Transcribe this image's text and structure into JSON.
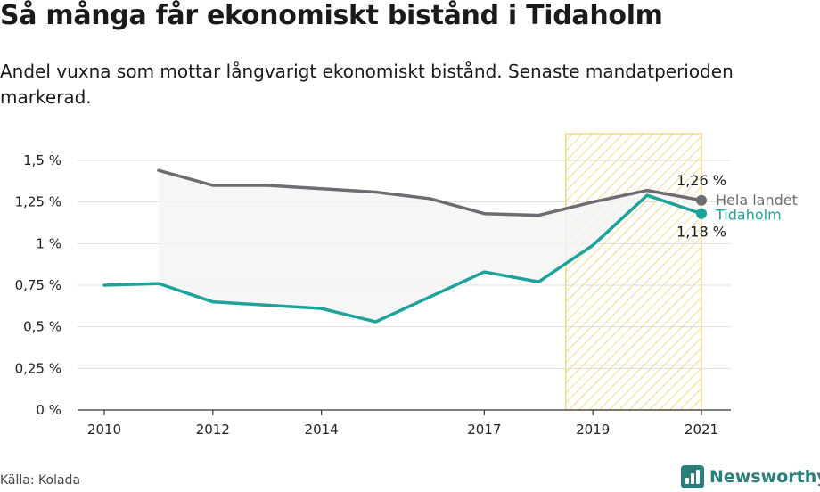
{
  "header": {
    "title": "Så många får ekonomiskt bistånd i Tidaholm",
    "subtitle": "Andel vuxna som mottar långvarigt ekonomiskt bistånd. Senaste mandatperioden markerad."
  },
  "footer": {
    "source": "Källa: Kolada",
    "brand": "Newsworthy",
    "brand_icon": "newsworthy-logo-icon"
  },
  "colors": {
    "national": "#6e6c72",
    "local": "#1ba39c",
    "highlight": "#f5d98b",
    "band": "#f4f4f4",
    "grid": "#dddddd"
  },
  "chart_data": {
    "type": "line",
    "x": [
      2010,
      2011,
      2012,
      2013,
      2014,
      2015,
      2016,
      2017,
      2018,
      2019,
      2020,
      2021
    ],
    "series": [
      {
        "name": "Hela landet",
        "values": [
          null,
          1.44,
          1.35,
          1.35,
          1.33,
          1.31,
          1.27,
          1.18,
          1.17,
          1.25,
          1.32,
          1.26
        ],
        "color": "#6e6c72",
        "end_label": "1,26 %"
      },
      {
        "name": "Tidaholm",
        "values": [
          0.75,
          0.76,
          0.65,
          0.63,
          0.61,
          0.53,
          0.68,
          0.83,
          0.77,
          0.99,
          1.29,
          1.18
        ],
        "color": "#1ba39c",
        "end_label": "1,18 %"
      }
    ],
    "y_ticks": [
      0,
      0.25,
      0.5,
      0.75,
      1,
      1.25,
      1.5
    ],
    "y_tick_labels": [
      "0 %",
      "0,25 %",
      "0,5 %",
      "0,75 %",
      "1 %",
      "1,25 %",
      "1,5 %"
    ],
    "x_ticks": [
      2010,
      2012,
      2014,
      2017,
      2019,
      2021
    ],
    "x_tick_labels": [
      "2010",
      "2012",
      "2014",
      "2017",
      "2019",
      "2021"
    ],
    "xlim": [
      2010,
      2021
    ],
    "ylim": [
      0,
      1.5
    ],
    "highlight_range": [
      2018.5,
      2021
    ],
    "grid": true,
    "legend": "end-labels"
  }
}
